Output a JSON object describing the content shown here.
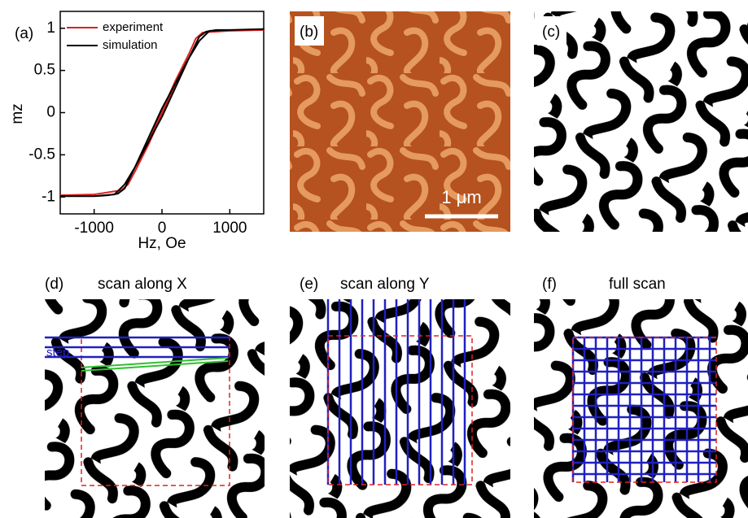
{
  "chart_data": {
    "type": "line",
    "xlabel": "Hz, Oe",
    "ylabel": "mz",
    "xlim": [
      -1500,
      1500
    ],
    "xticks": [
      -1000,
      0,
      1000
    ],
    "ylim": [
      -1.2,
      1.2
    ],
    "yticks": [
      -1,
      -0.5,
      0,
      0.5,
      1
    ],
    "legend": "upper left",
    "series": [
      {
        "name": "experiment",
        "color": "#e02020",
        "x": [
          -1500,
          -1000,
          -600,
          -500,
          -400,
          -200,
          0,
          200,
          400,
          500,
          600,
          1000,
          1500,
          1000,
          600,
          500,
          400,
          200,
          0,
          -200,
          -400,
          -500,
          -600,
          -1000,
          -1500
        ],
        "values": [
          -0.98,
          -0.97,
          -0.92,
          -0.85,
          -0.7,
          -0.38,
          -0.02,
          0.35,
          0.7,
          0.88,
          0.95,
          0.97,
          0.98,
          0.97,
          0.95,
          0.88,
          0.7,
          0.38,
          0.02,
          -0.35,
          -0.7,
          -0.85,
          -0.92,
          -0.97,
          -0.98
        ]
      },
      {
        "name": "simulation",
        "color": "#000000",
        "x": [
          -1500,
          -1000,
          -700,
          -550,
          -400,
          -200,
          0,
          200,
          400,
          550,
          650,
          800,
          1000,
          1500,
          1000,
          700,
          550,
          400,
          200,
          0,
          -200,
          -400,
          -550,
          -650,
          -800,
          -1000,
          -1500
        ],
        "values": [
          -0.99,
          -0.99,
          -0.97,
          -0.85,
          -0.65,
          -0.35,
          -0.05,
          0.3,
          0.65,
          0.9,
          0.96,
          0.98,
          0.98,
          0.99,
          0.98,
          0.97,
          0.85,
          0.65,
          0.35,
          0.05,
          -0.3,
          -0.65,
          -0.9,
          -0.96,
          -0.98,
          -0.99,
          -0.99
        ]
      }
    ]
  },
  "panels": [
    {
      "label": "(a)"
    },
    {
      "label": "(b)",
      "scale_bar": "1 μm"
    },
    {
      "label": "(c)"
    },
    {
      "label": "(d)",
      "title": "scan along X",
      "annotation": "step"
    },
    {
      "label": "(e)",
      "title": "scan along Y"
    },
    {
      "label": "(f)",
      "title": "full scan"
    }
  ]
}
